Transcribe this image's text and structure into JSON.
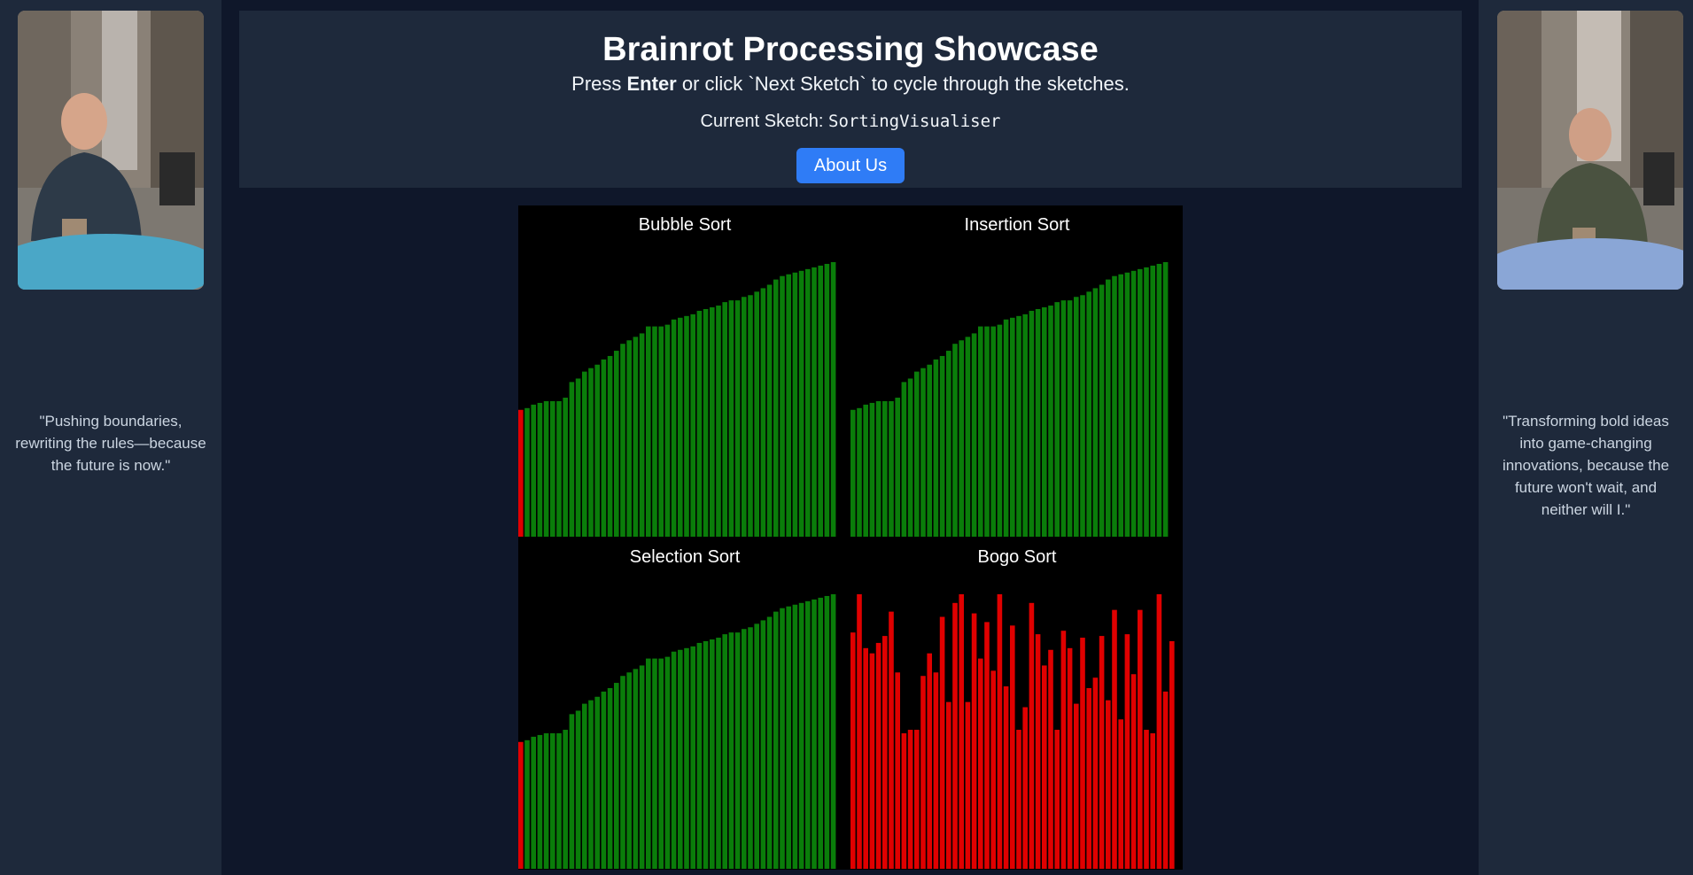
{
  "left_sidebar": {
    "quote": "\"Pushing boundaries, rewriting the rules—because the future is now.\""
  },
  "right_sidebar": {
    "quote": "\"Transforming bold ideas into game-changing innovations, because the future won't wait, and neither will I.\""
  },
  "header": {
    "title": "Brainrot Processing Showcase",
    "instruction_prefix": "Press ",
    "instruction_key": "Enter",
    "instruction_suffix": " or click `Next Sketch` to cycle through the sketches.",
    "current_label": "Current Sketch: ",
    "current_value": "SortingVisualiser",
    "about_button": "About Us"
  },
  "colors": {
    "sorted_bar": "#0a7d0a",
    "active_bar": "#e00000",
    "unsorted_bar": "#e00000",
    "canvas_bg": "#000000"
  },
  "chart_data": [
    {
      "type": "bar",
      "title": "Bubble Sort",
      "highlight_index": 0,
      "values": [
        73,
        74,
        76,
        77,
        78,
        78,
        78,
        80,
        89,
        91,
        95,
        97,
        99,
        102,
        104,
        107,
        111,
        113,
        115,
        117,
        121,
        121,
        121,
        122,
        125,
        126,
        127,
        128,
        130,
        131,
        132,
        133,
        135,
        136,
        136,
        138,
        139,
        141,
        143,
        145,
        148,
        150,
        151,
        152,
        153,
        154,
        155,
        156,
        157,
        158
      ]
    },
    {
      "type": "bar",
      "title": "Insertion Sort",
      "highlight_index": -1,
      "values": [
        73,
        74,
        76,
        77,
        78,
        78,
        78,
        80,
        89,
        91,
        95,
        97,
        99,
        102,
        104,
        107,
        111,
        113,
        115,
        117,
        121,
        121,
        121,
        122,
        125,
        126,
        127,
        128,
        130,
        131,
        132,
        133,
        135,
        136,
        136,
        138,
        139,
        141,
        143,
        145,
        148,
        150,
        151,
        152,
        153,
        154,
        155,
        156,
        157,
        158
      ]
    },
    {
      "type": "bar",
      "title": "Selection Sort",
      "highlight_index": 0,
      "values": [
        73,
        74,
        76,
        77,
        78,
        78,
        78,
        80,
        89,
        91,
        95,
        97,
        99,
        102,
        104,
        107,
        111,
        113,
        115,
        117,
        121,
        121,
        121,
        122,
        125,
        126,
        127,
        128,
        130,
        131,
        132,
        133,
        135,
        136,
        136,
        138,
        139,
        141,
        143,
        145,
        148,
        150,
        151,
        152,
        153,
        154,
        155,
        156,
        157,
        158
      ]
    },
    {
      "type": "bar",
      "title": "Bogo Sort",
      "highlight_index": "all",
      "values": [
        136,
        158,
        127,
        124,
        130,
        134,
        148,
        113,
        78,
        80,
        80,
        111,
        124,
        113,
        145,
        96,
        153,
        158,
        96,
        147,
        121,
        142,
        114,
        158,
        105,
        140,
        80,
        93,
        153,
        135,
        117,
        126,
        80,
        137,
        127,
        95,
        133,
        104,
        110,
        134,
        97,
        149,
        86,
        135,
        112,
        149,
        80,
        78,
        158,
        102,
        131
      ]
    }
  ]
}
